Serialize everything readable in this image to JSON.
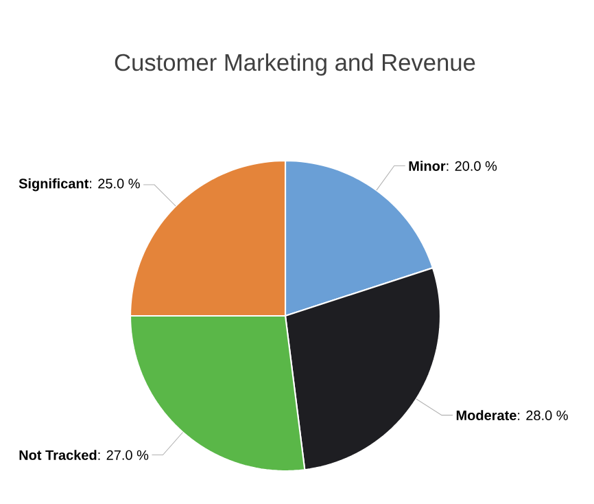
{
  "chart_data": {
    "type": "pie",
    "title": "Customer Marketing and Revenue",
    "categories": [
      "Minor",
      "Moderate",
      "Not Tracked",
      "Significant"
    ],
    "values": [
      20,
      28,
      27,
      25
    ],
    "colors": [
      "#6a9fd6",
      "#1e1e22",
      "#5ab748",
      "#e4843a"
    ],
    "value_labels": [
      ": 20.0 %",
      ": 28.0 %",
      ": 27.0 %",
      ": 25.0 %"
    ]
  }
}
